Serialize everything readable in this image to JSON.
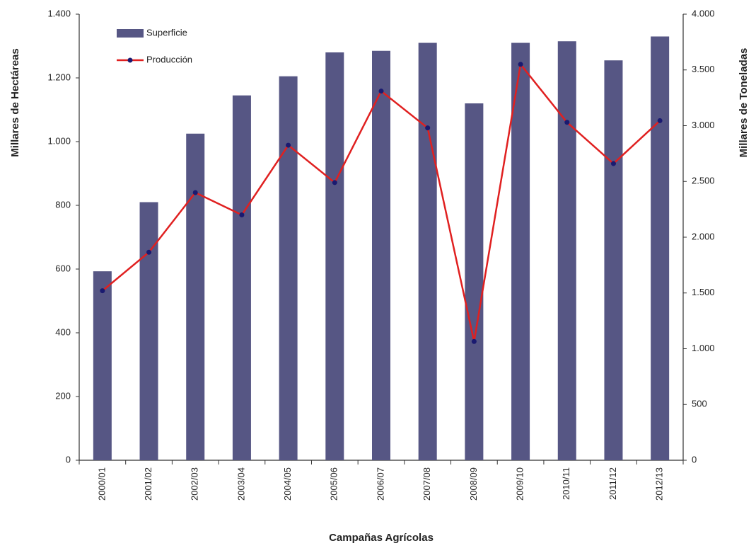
{
  "chart_data": {
    "type": "bar_line",
    "x_label": "Campañas Agrícolas",
    "y_label": "Millares de Hectáreas",
    "y2_label": "Millares de Toneladas",
    "categories": [
      "2000/01",
      "2001/02",
      "2002/03",
      "2003/04",
      "2004/05",
      "2005/06",
      "2006/07",
      "2007/08",
      "2008/09",
      "2009/10",
      "2010/11",
      "2011/12",
      "2012/13"
    ],
    "series": [
      {
        "name": "Superficie",
        "type": "bar",
        "color": "#565684",
        "values": [
          593,
          810,
          1025,
          1145,
          1205,
          1280,
          1285,
          1310,
          1120,
          1310,
          1315,
          1255,
          1330
        ]
      },
      {
        "name": "Producción",
        "type": "line",
        "axis": "y2",
        "color": "#e02020",
        "marker_color": "#1a1a70",
        "values": [
          1520,
          1865,
          2400,
          2200,
          2825,
          2490,
          3310,
          2980,
          1065,
          3550,
          3030,
          2660,
          3045
        ]
      }
    ],
    "ylim": [
      0,
      1400
    ],
    "yticks": [
      0,
      200,
      400,
      600,
      800,
      {
        "value": 1000,
        "label": "1.000"
      },
      {
        "value": 1200,
        "label": "1.200"
      },
      {
        "value": 1400,
        "label": "1.400"
      }
    ],
    "y2lim": [
      0,
      4000
    ],
    "y2ticks": [
      0,
      500,
      {
        "value": 1000,
        "label": "1.000"
      },
      {
        "value": 1500,
        "label": "1.500"
      },
      {
        "value": 2000,
        "label": "2.000"
      },
      {
        "value": 2500,
        "label": "2.500"
      },
      {
        "value": 3000,
        "label": "3.000"
      },
      {
        "value": 3500,
        "label": "3.500"
      },
      {
        "value": 4000,
        "label": "4.000"
      }
    ],
    "grid": false,
    "legend": "top-left"
  }
}
